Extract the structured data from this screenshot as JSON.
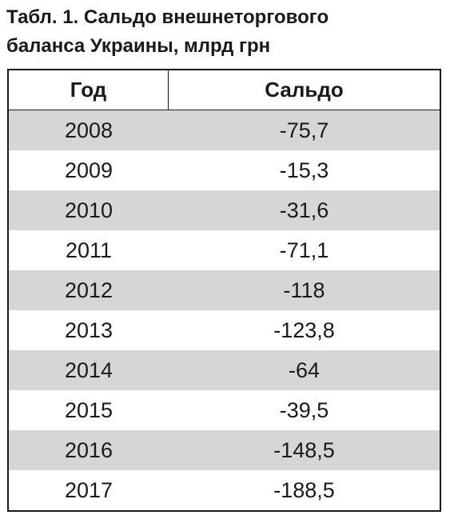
{
  "caption": {
    "line1": "Табл. 1. Сальдо внешнеторгового",
    "line2": "баланса Украины, млрд грн"
  },
  "table": {
    "headers": {
      "year": "Год",
      "balance": "Сальдо"
    },
    "rows": [
      {
        "year": "2008",
        "balance": "-75,7"
      },
      {
        "year": "2009",
        "balance": "-15,3"
      },
      {
        "year": "2010",
        "balance": "-31,6"
      },
      {
        "year": "2011",
        "balance": "-71,1"
      },
      {
        "year": "2012",
        "balance": "-118"
      },
      {
        "year": "2013",
        "balance": "-123,8"
      },
      {
        "year": "2014",
        "balance": "-64"
      },
      {
        "year": "2015",
        "balance": "-39,5"
      },
      {
        "year": "2016",
        "balance": "-148,5"
      },
      {
        "year": "2017",
        "balance": "-188,5"
      }
    ],
    "shade_color": "#d6d6d6",
    "border_color": "#1a1a1a"
  }
}
